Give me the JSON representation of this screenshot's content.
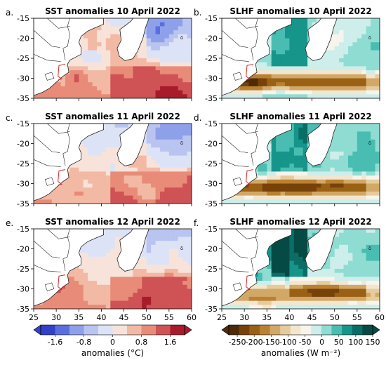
{
  "figure": {
    "panels": [
      {
        "letter": "a.",
        "title": "SST anomalies 10 April 2022",
        "field": "sst",
        "seed": 1
      },
      {
        "letter": "b.",
        "title": "SLHF anomalies 10 April 2022",
        "field": "slhf",
        "seed": 2
      },
      {
        "letter": "c.",
        "title": "SST anomalies 11 April 2022",
        "field": "sst",
        "seed": 3
      },
      {
        "letter": "d.",
        "title": "SLHF anomalies 11 April 2022",
        "field": "slhf",
        "seed": 4
      },
      {
        "letter": "e.",
        "title": "SST anomalies 12 April 2022",
        "field": "sst",
        "seed": 5
      },
      {
        "letter": "f.",
        "title": "SLHF anomalies 12 April 2022",
        "field": "slhf",
        "seed": 6
      }
    ],
    "lon_ticks": [
      "25",
      "30",
      "35",
      "40",
      "45",
      "50",
      "55",
      "60"
    ],
    "lat_ticks": [
      "-15",
      "-20",
      "-25",
      "-30",
      "-35"
    ],
    "lon_range": [
      25,
      60
    ],
    "lat_range": [
      -15,
      -35
    ],
    "colorbars": [
      {
        "field": "sst",
        "label": "anomalies (°C)",
        "ticks": [
          "-1.6",
          "-0.8",
          "0",
          "0.8",
          "1.6"
        ],
        "range": [
          -2.0,
          2.0
        ]
      },
      {
        "field": "slhf",
        "label": "anomalies (W m⁻²)",
        "ticks": [
          "-250",
          "-200",
          "-150",
          "-100",
          "-50",
          "0",
          "50",
          "100",
          "150"
        ],
        "range": [
          -275,
          150
        ]
      }
    ],
    "colors": {
      "land": "#ffffff",
      "coast": "#222222",
      "border": "#d42a2a"
    }
  }
}
